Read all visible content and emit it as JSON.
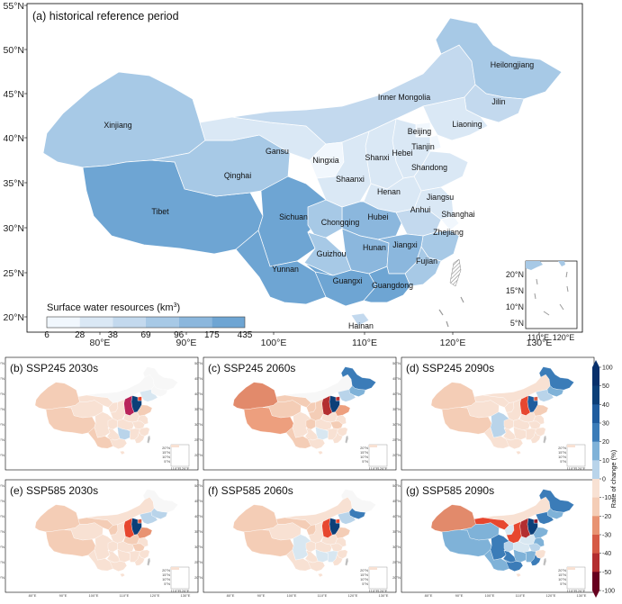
{
  "main_map": {
    "title": "(a) historical reference period",
    "lat_ticks": [
      "55°N",
      "50°N",
      "45°N",
      "40°N",
      "35°N",
      "30°N",
      "25°N",
      "20°N"
    ],
    "lon_ticks": [
      "80°E",
      "90°E",
      "100°E",
      "110°E",
      "120°E",
      "130°E"
    ],
    "legend": {
      "title": "Surface water resources (km",
      "title_sup": "3",
      "title_end": ")",
      "ticks": [
        "6",
        "28",
        "38",
        "69",
        "96",
        "175",
        "435"
      ],
      "colors": [
        "#f1f7fd",
        "#dae8f5",
        "#c3d9ee",
        "#a7c9e6",
        "#8bb7dd",
        "#6ea5d3"
      ]
    },
    "inset": {
      "lat_ticks": [
        "20°N",
        "15°N",
        "10°N",
        "5°N"
      ],
      "lon_ticks": [
        "110°E",
        "120°E"
      ]
    },
    "provinces": [
      {
        "name": "Xinjiang",
        "color": "#a7c9e6"
      },
      {
        "name": "Tibet",
        "color": "#6ea5d3"
      },
      {
        "name": "Qinghai",
        "color": "#a7c9e6"
      },
      {
        "name": "Gansu",
        "color": "#dae8f5"
      },
      {
        "name": "Inner Mongolia",
        "color": "#c3d9ee"
      },
      {
        "name": "Heilongjiang",
        "color": "#a7c9e6"
      },
      {
        "name": "Jilin",
        "color": "#c3d9ee"
      },
      {
        "name": "Liaoning",
        "color": "#dae8f5"
      },
      {
        "name": "Beijing",
        "color": "#f1f7fd"
      },
      {
        "name": "Tianjin",
        "color": "#f1f7fd"
      },
      {
        "name": "Hebei",
        "color": "#dae8f5"
      },
      {
        "name": "Shanxi",
        "color": "#dae8f5"
      },
      {
        "name": "Shandong",
        "color": "#dae8f5"
      },
      {
        "name": "Ningxia",
        "color": "#f1f7fd"
      },
      {
        "name": "Shaanxi",
        "color": "#dae8f5"
      },
      {
        "name": "Henan",
        "color": "#dae8f5"
      },
      {
        "name": "Jiangsu",
        "color": "#dae8f5"
      },
      {
        "name": "Anhui",
        "color": "#c3d9ee"
      },
      {
        "name": "Shanghai",
        "color": "#f1f7fd"
      },
      {
        "name": "Hubei",
        "color": "#8bb7dd"
      },
      {
        "name": "Sichuan",
        "color": "#6ea5d3"
      },
      {
        "name": "Chongqing",
        "color": "#a7c9e6"
      },
      {
        "name": "Zhejiang",
        "color": "#a7c9e6"
      },
      {
        "name": "Hunan",
        "color": "#8bb7dd"
      },
      {
        "name": "Jiangxi",
        "color": "#8bb7dd"
      },
      {
        "name": "Guizhou",
        "color": "#a7c9e6"
      },
      {
        "name": "Fujian",
        "color": "#a7c9e6"
      },
      {
        "name": "Yunnan",
        "color": "#6ea5d3"
      },
      {
        "name": "Guangxi",
        "color": "#6ea5d3"
      },
      {
        "name": "Guangdong",
        "color": "#6ea5d3"
      },
      {
        "name": "Hainan",
        "color": "#c3d9ee"
      }
    ]
  },
  "small_maps": [
    {
      "title": "(b) SSP245 2030s",
      "colors": [
        "#f4cdb6",
        "#f4cdb6",
        "#f8e1d3",
        "#f8e1d3",
        "#f7f7f7",
        "#f7f7f7",
        "#f7f7f7",
        "#d8e7f1",
        "#e7472f",
        "#0c3f78",
        "#b9245a",
        "#f4cdb6",
        "#f8e1d3",
        "#f8e1d3",
        "#f8e1d3",
        "#f8e1d3",
        "#f8e1d3",
        "#f8e1d3",
        "#f8e1d3",
        "#f8e1d3",
        "#f8e1d3",
        "#b9d4ea",
        "#f8e1d3",
        "#f8e1d3",
        "#f8e1d3",
        "#f4cdb6",
        "#f8e1d3"
      ]
    },
    {
      "title": "(c) SSP245 2060s",
      "colors": [
        "#e28a6b",
        "#ed9f7e",
        "#f4cdb6",
        "#f4cdb6",
        "#f7f7f7",
        "#3b7cb8",
        "#7fb2d8",
        "#b9d4ea",
        "#b32e30",
        "#0c3f78",
        "#b32e30",
        "#ed9f7e",
        "#f4cdb6",
        "#f4cdb6",
        "#f8e1d3",
        "#f8e1d3",
        "#f4cdb6",
        "#f8e1d3",
        "#f8e1d3",
        "#f4cdb6",
        "#f8e1d3",
        "#d8e7f1",
        "#f8e1d3",
        "#f8e1d3",
        "#f8e1d3",
        "#f4cdb6",
        "#f8e1d3"
      ]
    },
    {
      "title": "(d) SSP245 2090s",
      "colors": [
        "#f4cdb6",
        "#f4cdb6",
        "#f8e1d3",
        "#f8e1d3",
        "#f8e1d3",
        "#3b7cb8",
        "#7fb2d8",
        "#b9d4ea",
        "#d65a45",
        "#1f5c9e",
        "#e7472f",
        "#f4cdb6",
        "#f8e1d3",
        "#f8e1d3",
        "#f8e1d3",
        "#f8e1d3",
        "#f8e1d3",
        "#f8e1d3",
        "#b9d4ea",
        "#f8e1d3",
        "#f8e1d3",
        "#f8e1d3",
        "#f8e1d3",
        "#f8e1d3",
        "#f8e1d3",
        "#f8e1d3",
        "#f8e1d3"
      ]
    },
    {
      "title": "(e) SSP585 2030s",
      "colors": [
        "#f4cdb6",
        "#f4cdb6",
        "#f8e1d3",
        "#f4cdb6",
        "#f8e1d3",
        "#f7f7f7",
        "#b9d4ea",
        "#b9d4ea",
        "#d65a45",
        "#0c3f78",
        "#e7472f",
        "#e89372",
        "#f4cdb6",
        "#f8e1d3",
        "#f4cdb6",
        "#f8e1d3",
        "#f4cdb6",
        "#f8e1d3",
        "#f8e1d3",
        "#f8e1d3",
        "#f8e1d3",
        "#f8e1d3",
        "#f8e1d3",
        "#f8e1d3",
        "#f8e1d3",
        "#f8e1d3",
        "#f8e1d3"
      ]
    },
    {
      "title": "(f) SSP585 2060s",
      "colors": [
        "#f4cdb6",
        "#f4cdb6",
        "#f8e1d3",
        "#f4cdb6",
        "#f8e1d3",
        "#f7f7f7",
        "#3b7cb8",
        "#b9d4ea",
        "#e7472f",
        "#0c3f78",
        "#e7472f",
        "#f4cdb6",
        "#f4cdb6",
        "#f8e1d3",
        "#f8e1d3",
        "#f8e1d3",
        "#f8e1d3",
        "#f8e1d3",
        "#d8e7f1",
        "#f8e1d3",
        "#f8e1d3",
        "#d8e7f1",
        "#d8e7f1",
        "#f8e1d3",
        "#f8e1d3",
        "#f8e1d3",
        "#f8e1d3"
      ]
    },
    {
      "title": "(g) SSP585 2090s",
      "colors": [
        "#e28a6b",
        "#7fb2d8",
        "#7fb2d8",
        "#e7472f",
        "#f8e1d3",
        "#3b7cb8",
        "#7fb2d8",
        "#3b7cb8",
        "#8b1a2b",
        "#0c3f78",
        "#b32e30",
        "#7fb2d8",
        "#d8e7f1",
        "#e7472f",
        "#d8e7f1",
        "#7fb2d8",
        "#b9d4ea",
        "#d8e7f1",
        "#3b7cb8",
        "#b9d4ea",
        "#f8e1d3",
        "#7fb2d8",
        "#7fb2d8",
        "#3b7cb8",
        "#3b7cb8",
        "#7fb2d8",
        "#3b7cb8"
      ]
    }
  ],
  "small_map_ticks": {
    "lat": [
      "50°N",
      "45°N",
      "40°N",
      "35°N",
      "30°N",
      "25°N",
      "20°N"
    ],
    "lon": [
      "80°E",
      "90°E",
      "100°E",
      "110°E",
      "120°E",
      "130°E"
    ],
    "inset_lat": [
      "20°N",
      "15°N",
      "10°N",
      "5°N"
    ],
    "inset_lon": [
      "110°E",
      "120°E"
    ]
  },
  "colorbar": {
    "label": "Rate of change (%)",
    "ticks": [
      "100",
      "50",
      "40",
      "30",
      "20",
      "10",
      "0",
      "-10",
      "-20",
      "-30",
      "-40",
      "-50",
      "-100"
    ],
    "colors": [
      "#08306b",
      "#0c3f78",
      "#1f5c9e",
      "#3b7cb8",
      "#7fb2d8",
      "#b9d4ea",
      "#d8e7f1",
      "#f8e1d3",
      "#f4cdb6",
      "#e89372",
      "#d65a45",
      "#b32e30",
      "#67001f"
    ]
  }
}
